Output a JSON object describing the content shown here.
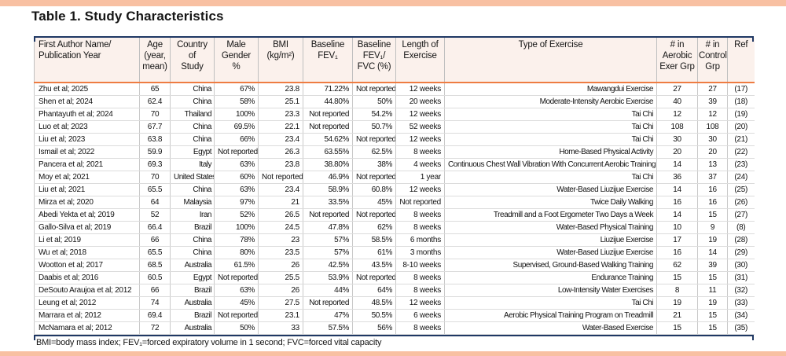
{
  "title": "Table 1. Study Characteristics",
  "footnote": "BMI=body mass index; FEV₁=forced expiratory volume in 1 second; FVC=forced vital capacity",
  "colors": {
    "accent_bar": "#f8c0a2",
    "navy": "#1f3864",
    "orange": "#ee7c42",
    "header_bg": "#fbf1ec"
  },
  "table": {
    "headers": [
      "First Author Name/\nPublication Year",
      "Age\n(year,\nmean)",
      "Country\nof\nStudy",
      "Male\nGender\n%",
      "BMI\n(kg/m²)",
      "Baseline\nFEV₁",
      "Baseline\nFEV₁/\nFVC (%)",
      "Length of\nExercise",
      "Type of Exercise",
      "# in\nAerobic\nExer Grp",
      "# in\nControl\nGrp",
      "Ref"
    ],
    "rows": [
      [
        "Zhu et al; 2025",
        "65",
        "China",
        "67%",
        "23.8",
        "71.22%",
        "Not reported",
        "12 weeks",
        "Mawangdui Exercise",
        "27",
        "27",
        "(17)"
      ],
      [
        "Shen et al; 2024",
        "62.4",
        "China",
        "58%",
        "25.1",
        "44.80%",
        "50%",
        "20 weeks",
        "Moderate-Intensity Aerobic Exercise",
        "40",
        "39",
        "(18)"
      ],
      [
        "Phantayuth et al; 2024",
        "70",
        "Thailand",
        "100%",
        "23.3",
        "Not reported",
        "54.2%",
        "12 weeks",
        "Tai Chi",
        "12",
        "12",
        "(19)"
      ],
      [
        "Luo et al; 2023",
        "67.7",
        "China",
        "69.5%",
        "22.1",
        "Not reported",
        "50.7%",
        "52 weeks",
        "Tai Chi",
        "108",
        "108",
        "(20)"
      ],
      [
        "Liu et al; 2023",
        "63.8",
        "China",
        "66%",
        "23.4",
        "54.62%",
        "Not reported",
        "12 weeks",
        "Tai Chi",
        "30",
        "30",
        "(21)"
      ],
      [
        "Ismail et al; 2022",
        "59.9",
        "Egypt",
        "Not reported",
        "26.3",
        "63.55%",
        "62.5%",
        "8 weeks",
        "Home-Based Physical Activity",
        "20",
        "20",
        "(22)"
      ],
      [
        "Pancera et al; 2021",
        "69.3",
        "Italy",
        "63%",
        "23.8",
        "38.80%",
        "38%",
        "4 weeks",
        "Continuous Chest Wall Vibration With Concurrent Aerobic Training",
        "14",
        "13",
        "(23)"
      ],
      [
        "Moy et al; 2021",
        "70",
        "United States",
        "60%",
        "Not reported",
        "46.9%",
        "Not reported",
        "1 year",
        "Tai Chi",
        "36",
        "37",
        "(24)"
      ],
      [
        "Liu et al; 2021",
        "65.5",
        "China",
        "63%",
        "23.4",
        "58.9%",
        "60.8%",
        "12 weeks",
        "Water-Based Liuzijue Exercise",
        "14",
        "16",
        "(25)"
      ],
      [
        "Mirza et al; 2020",
        "64",
        "Malaysia",
        "97%",
        "21",
        "33.5%",
        "45%",
        "Not reported",
        "Twice Daily Walking",
        "16",
        "16",
        "(26)"
      ],
      [
        "Abedi Yekta et al; 2019",
        "52",
        "Iran",
        "52%",
        "26.5",
        "Not reported",
        "Not reported",
        "8 weeks",
        "Treadmill and a Foot Ergometer Two Days a Week",
        "14",
        "15",
        "(27)"
      ],
      [
        "Gallo-Silva et al; 2019",
        "66.4",
        "Brazil",
        "100%",
        "24.5",
        "47.8%",
        "62%",
        "8 weeks",
        "Water-Based Physical Training",
        "10",
        "9",
        "(8)"
      ],
      [
        "Li et al; 2019",
        "66",
        "China",
        "78%",
        "23",
        "57%",
        "58.5%",
        "6 months",
        "Liuzijue Exercise",
        "17",
        "19",
        "(28)"
      ],
      [
        "Wu et al; 2018",
        "65.5",
        "China",
        "80%",
        "23.5",
        "57%",
        "61%",
        "3 months",
        "Water-Based Liuzijue Exercise",
        "16",
        "14",
        "(29)"
      ],
      [
        "Wootton et al; 2017",
        "68.5",
        "Australia",
        "61.5%",
        "26",
        "42.5%",
        "43.5%",
        "8-10 weeks",
        "Supervised, Ground-Based Walking Training",
        "62",
        "39",
        "(30)"
      ],
      [
        "Daabis et al; 2016",
        "60.5",
        "Egypt",
        "Not reported",
        "25.5",
        "53.9%",
        "Not reported",
        "8 weeks",
        "Endurance Training",
        "15",
        "15",
        "(31)"
      ],
      [
        "DeSouto Araujoa et al; 2012",
        "66",
        "Brazil",
        "63%",
        "26",
        "44%",
        "64%",
        "8 weeks",
        "Low-Intensity Water Exercises",
        "8",
        "11",
        "(32)"
      ],
      [
        "Leung et al; 2012",
        "74",
        "Australia",
        "45%",
        "27.5",
        "Not reported",
        "48.5%",
        "12 weeks",
        "Tai Chi",
        "19",
        "19",
        "(33)"
      ],
      [
        "Marrara et al; 2012",
        "69.4",
        "Brazil",
        "Not reported",
        "23.1",
        "47%",
        "50.5%",
        "6 weeks",
        "Aerobic Physical Training Program on Treadmill",
        "21",
        "15",
        "(34)"
      ],
      [
        "McNamara et al; 2012",
        "72",
        "Australia",
        "50%",
        "33",
        "57.5%",
        "56%",
        "8 weeks",
        "Water-Based Exercise",
        "15",
        "15",
        "(35)"
      ]
    ]
  }
}
